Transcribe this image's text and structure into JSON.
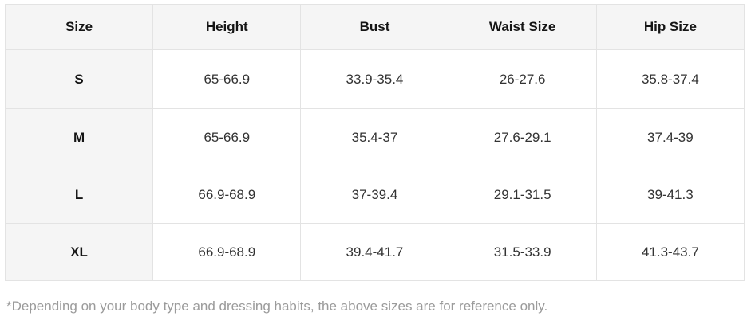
{
  "table": {
    "columns": [
      "Size",
      "Height",
      "Bust",
      "Waist Size",
      "Hip Size"
    ],
    "rows": [
      {
        "size": "S",
        "values": [
          "65-66.9",
          "33.9-35.4",
          "26-27.6",
          "35.8-37.4"
        ]
      },
      {
        "size": "M",
        "values": [
          "65-66.9",
          "35.4-37",
          "27.6-29.1",
          "37.4-39"
        ]
      },
      {
        "size": "L",
        "values": [
          "66.9-68.9",
          "37-39.4",
          "29.1-31.5",
          "39-41.3"
        ]
      },
      {
        "size": "XL",
        "values": [
          "66.9-68.9",
          "39.4-41.7",
          "31.5-33.9",
          "41.3-43.7"
        ]
      }
    ]
  },
  "footnote": "*Depending on your body type and dressing habits, the above sizes are for reference only.",
  "colors": {
    "header_bg": "#f5f5f5",
    "border": "#e3e3e3",
    "header_text": "#151515",
    "cell_text": "#333333",
    "footnote_text": "#9b9b9b"
  },
  "chart_data": {
    "type": "table",
    "columns": [
      "Size",
      "Height",
      "Bust",
      "Waist Size",
      "Hip Size"
    ],
    "rows": [
      [
        "S",
        "65-66.9",
        "33.9-35.4",
        "26-27.6",
        "35.8-37.4"
      ],
      [
        "M",
        "65-66.9",
        "35.4-37",
        "27.6-29.1",
        "37.4-39"
      ],
      [
        "L",
        "66.9-68.9",
        "37-39.4",
        "29.1-31.5",
        "39-41.3"
      ],
      [
        "XL",
        "66.9-68.9",
        "39.4-41.7",
        "31.5-33.9",
        "41.3-43.7"
      ]
    ],
    "footnote": "*Depending on your body type and dressing habits, the above sizes are for reference only."
  }
}
